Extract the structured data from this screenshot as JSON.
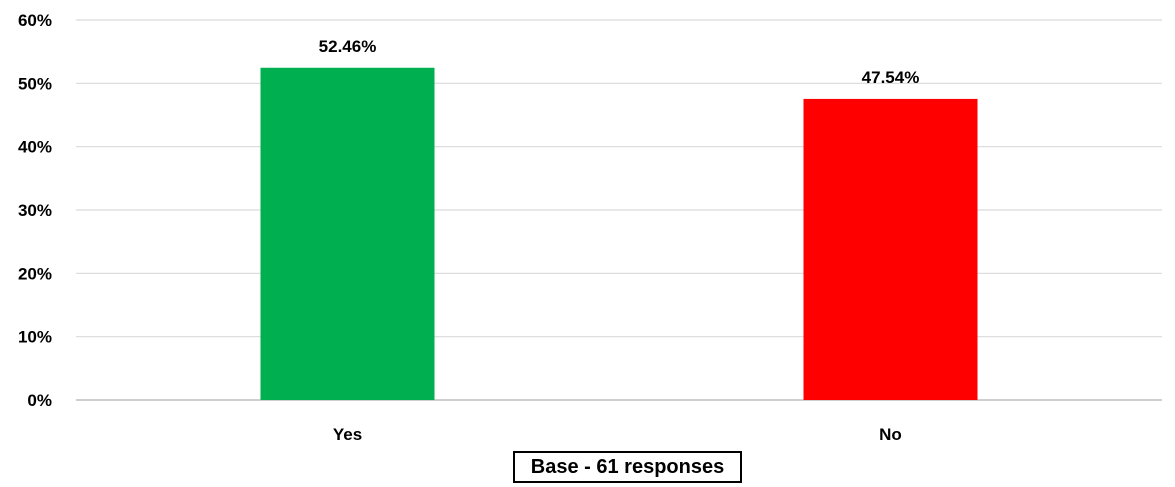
{
  "chart_data": {
    "type": "bar",
    "categories": [
      "Yes",
      "No"
    ],
    "values": [
      52.46,
      47.54
    ],
    "data_labels": [
      "52.46%",
      "47.54%"
    ],
    "bar_colors": [
      "#00B050",
      "#FF0000"
    ],
    "yticks": [
      "0%",
      "10%",
      "20%",
      "30%",
      "40%",
      "50%",
      "60%"
    ],
    "ylim": [
      0,
      60
    ],
    "grid": true,
    "legend": "none",
    "title": "",
    "xlabel": "",
    "ylabel": ""
  },
  "note": "Base - 61 responses"
}
